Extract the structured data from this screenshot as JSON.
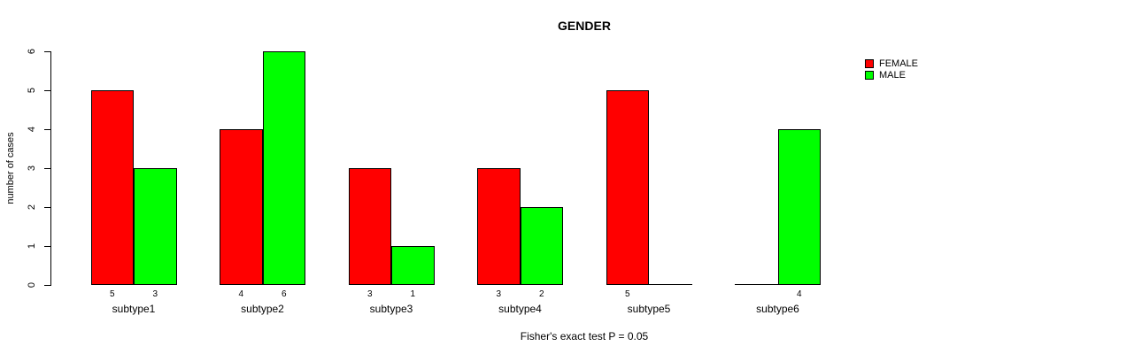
{
  "chart_data": {
    "type": "bar",
    "title": "GENDER",
    "categories": [
      "subtype1",
      "subtype2",
      "subtype3",
      "subtype4",
      "subtype5",
      "subtype6"
    ],
    "series": [
      {
        "name": "FEMALE",
        "color": "#FF0000",
        "values": [
          5,
          4,
          3,
          3,
          5,
          0
        ]
      },
      {
        "name": "MALE",
        "color": "#00FF00",
        "values": [
          3,
          6,
          1,
          2,
          0,
          4
        ]
      }
    ],
    "bar_value_labels": [
      [
        "5",
        "3"
      ],
      [
        "4",
        "6"
      ],
      [
        "3",
        "1"
      ],
      [
        "3",
        "2"
      ],
      [
        "5",
        ""
      ],
      [
        "",
        "4"
      ]
    ],
    "ylabel": "number of cases",
    "xlabel": "",
    "ylim": [
      0,
      6
    ],
    "yticks": [
      "0",
      "1",
      "2",
      "3",
      "4",
      "5",
      "6"
    ],
    "grid": false,
    "legend_position": "top-right",
    "legend": [
      {
        "label": "FEMALE",
        "color": "#FF0000"
      },
      {
        "label": "MALE",
        "color": "#00FF00"
      }
    ],
    "caption": "Fisher's exact test P = 0.05"
  }
}
